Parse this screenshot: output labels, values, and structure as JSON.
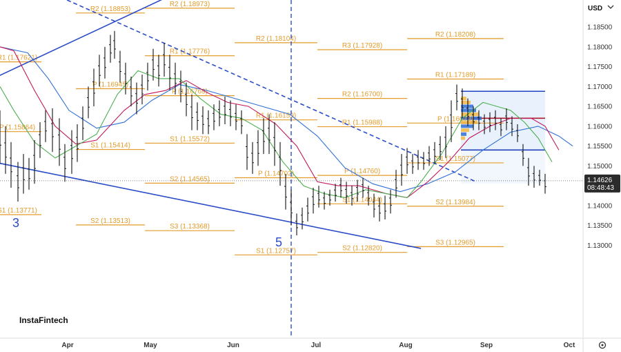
{
  "chart_data": {
    "type": "line",
    "currency_label": "USD",
    "brand": "InstaFintech",
    "y_ticks": [
      "1.18500",
      "1.18000",
      "1.17500",
      "1.17000",
      "1.16500",
      "1.16000",
      "1.15500",
      "1.15000",
      "1.14000",
      "1.13500",
      "1.13000"
    ],
    "y_tick_values": [
      1.185,
      1.18,
      1.175,
      1.17,
      1.165,
      1.16,
      1.155,
      1.15,
      1.14,
      1.135,
      1.13
    ],
    "ylim": [
      1.1258,
      1.1918
    ],
    "months": [
      "Apr",
      "May",
      "Jun",
      "Jul",
      "Aug",
      "Sep",
      "Oct"
    ],
    "last_price": "1.14626",
    "last_price_value": 1.14626,
    "countdown": "08:48:43",
    "wave_labels": [
      {
        "text": "3",
        "t": 2,
        "price": 1.1346
      },
      {
        "text": "5",
        "t": 383,
        "price": 1.1297
      }
    ],
    "pivot_levels": [
      {
        "label": "R1 (1.17621)",
        "value": 1.17621,
        "t0": -10,
        "t1": 60
      },
      {
        "label": "P (1.15864)",
        "value": 1.15864,
        "t0": -10,
        "t1": 60
      },
      {
        "label": "S1 (1.13771)",
        "value": 1.13771,
        "t0": -10,
        "t1": 60
      },
      {
        "label": "R2 (1.18853)",
        "value": 1.18853,
        "t0": 110,
        "t1": 210
      },
      {
        "label": "R1 (1.17776)",
        "value": 1.17776,
        "t0": 210,
        "t1": 340
      },
      {
        "label": "P (1.16945)",
        "value": 1.16945,
        "t0": 110,
        "t1": 210
      },
      {
        "label": "P (1.16769)",
        "value": 1.16769,
        "t0": 210,
        "t1": 340
      },
      {
        "label": "S1 (1.15414)",
        "value": 1.15414,
        "t0": 110,
        "t1": 210
      },
      {
        "label": "S1 (1.15572)",
        "value": 1.15572,
        "t0": 210,
        "t1": 340
      },
      {
        "label": "S2 (1.13513)",
        "value": 1.13513,
        "t0": 110,
        "t1": 210
      },
      {
        "label": "S2 (1.14565)",
        "value": 1.14565,
        "t0": 210,
        "t1": 340
      },
      {
        "label": "R2 (1.18973)",
        "value": 1.18973,
        "t0": 210,
        "t1": 340
      },
      {
        "label": "S3 (1.13368)",
        "value": 1.13368,
        "t0": 210,
        "t1": 340
      },
      {
        "label": "R2 (1.18104)",
        "value": 1.18104,
        "t0": 340,
        "t1": 460
      },
      {
        "label": "R1 (1.16159)",
        "value": 1.16159,
        "t0": 340,
        "t1": 460
      },
      {
        "label": "P (1.14702)",
        "value": 1.14702,
        "t0": 340,
        "t1": 460
      },
      {
        "label": "S1 (1.12757)",
        "value": 1.12757,
        "t0": 340,
        "t1": 460
      },
      {
        "label": "R3 (1.17928)",
        "value": 1.17928,
        "t0": 460,
        "t1": 590
      },
      {
        "label": "R2 (1.16700)",
        "value": 1.167,
        "t0": 460,
        "t1": 590
      },
      {
        "label": "R1 (1.15988)",
        "value": 1.15988,
        "t0": 460,
        "t1": 590
      },
      {
        "label": "P (1.14760)",
        "value": 1.1476,
        "t0": 460,
        "t1": 590
      },
      {
        "label": "S1 (1.14044)",
        "value": 1.14044,
        "t0": 460,
        "t1": 590
      },
      {
        "label": "S2 (1.12820)",
        "value": 1.1282,
        "t0": 460,
        "t1": 590
      },
      {
        "label": "R2 (1.18208)",
        "value": 1.18208,
        "t0": 590,
        "t1": 730
      },
      {
        "label": "R1 (1.17189)",
        "value": 1.17189,
        "t0": 590,
        "t1": 730
      },
      {
        "label": "P (1.16079)",
        "value": 1.16079,
        "t0": 590,
        "t1": 730
      },
      {
        "label": "S1 (1.15077)",
        "value": 1.15077,
        "t0": 590,
        "t1": 730
      },
      {
        "label": "S2 (1.13984)",
        "value": 1.13984,
        "t0": 590,
        "t1": 730
      },
      {
        "label": "S3 (1.12965)",
        "value": 1.12965,
        "t0": 590,
        "t1": 730
      }
    ],
    "trendlines": [
      {
        "points": [
          [
            -10,
            1.172
          ],
          [
            248,
            1.193
          ]
        ],
        "dashed": false
      },
      {
        "points": [
          [
            -10,
            1.151
          ],
          [
            610,
            1.1292
          ]
        ],
        "dashed": false
      },
      {
        "points": [
          [
            88,
            1.1925
          ],
          [
            690,
            1.146
          ]
        ],
        "dashed": true
      }
    ],
    "vertical_marker_t": 422,
    "series": [
      {
        "color": "#2f6fd6",
        "points": [
          [
            0,
            1.18
          ],
          [
            40,
            1.1785
          ],
          [
            70,
            1.172
          ],
          [
            100,
            1.164
          ],
          [
            140,
            1.1595
          ],
          [
            180,
            1.161
          ],
          [
            220,
            1.1665
          ],
          [
            260,
            1.1705
          ],
          [
            300,
            1.169
          ],
          [
            340,
            1.167
          ],
          [
            380,
            1.165
          ],
          [
            420,
            1.163
          ],
          [
            460,
            1.1575
          ],
          [
            500,
            1.1495
          ],
          [
            540,
            1.1455
          ],
          [
            580,
            1.1435
          ],
          [
            620,
            1.1455
          ],
          [
            660,
            1.1485
          ],
          [
            700,
            1.154
          ],
          [
            740,
            1.1585
          ],
          [
            780,
            1.16
          ],
          [
            810,
            1.1575
          ],
          [
            830,
            1.155
          ]
        ]
      },
      {
        "color": "#c2185b",
        "points": [
          [
            0,
            1.18
          ],
          [
            20,
            1.179
          ],
          [
            50,
            1.169
          ],
          [
            80,
            1.16
          ],
          [
            110,
            1.1555
          ],
          [
            140,
            1.1565
          ],
          [
            180,
            1.164
          ],
          [
            210,
            1.168
          ],
          [
            240,
            1.169
          ],
          [
            270,
            1.1715
          ],
          [
            300,
            1.1685
          ],
          [
            330,
            1.166
          ],
          [
            360,
            1.165
          ],
          [
            400,
            1.1605
          ],
          [
            430,
            1.155
          ],
          [
            460,
            1.146
          ],
          [
            490,
            1.145
          ],
          [
            520,
            1.145
          ],
          [
            560,
            1.143
          ],
          [
            590,
            1.142
          ],
          [
            620,
            1.146
          ],
          [
            650,
            1.151
          ],
          [
            680,
            1.157
          ],
          [
            710,
            1.16
          ],
          [
            740,
            1.162
          ],
          [
            770,
            1.162
          ],
          [
            790,
            1.16
          ],
          [
            810,
            1.154
          ]
        ]
      },
      {
        "color": "#4caf50",
        "points": [
          [
            0,
            1.17
          ],
          [
            20,
            1.164
          ],
          [
            50,
            1.156
          ],
          [
            80,
            1.152
          ],
          [
            110,
            1.155
          ],
          [
            140,
            1.158
          ],
          [
            170,
            1.168
          ],
          [
            200,
            1.174
          ],
          [
            230,
            1.172
          ],
          [
            260,
            1.172
          ],
          [
            290,
            1.167
          ],
          [
            320,
            1.163
          ],
          [
            350,
            1.162
          ],
          [
            380,
            1.159
          ],
          [
            410,
            1.151
          ],
          [
            440,
            1.145
          ],
          [
            470,
            1.143
          ],
          [
            500,
            1.142
          ],
          [
            530,
            1.144
          ],
          [
            560,
            1.143
          ],
          [
            590,
            1.142
          ],
          [
            610,
            1.146
          ],
          [
            640,
            1.153
          ],
          [
            670,
            1.162
          ],
          [
            700,
            1.166
          ],
          [
            720,
            1.165
          ],
          [
            740,
            1.164
          ],
          [
            760,
            1.161
          ],
          [
            780,
            1.157
          ],
          [
            800,
            1.151
          ]
        ]
      }
    ],
    "candles": [
      [
        0,
        1.164,
        1.1505
      ],
      [
        8,
        1.16,
        1.148
      ],
      [
        16,
        1.156,
        1.1445
      ],
      [
        26,
        1.151,
        1.141
      ],
      [
        34,
        1.153,
        1.143
      ],
      [
        42,
        1.152,
        1.144
      ],
      [
        50,
        1.1565,
        1.1455
      ],
      [
        58,
        1.161,
        1.152
      ],
      [
        66,
        1.164,
        1.156
      ],
      [
        76,
        1.1645,
        1.1535
      ],
      [
        86,
        1.162,
        1.15
      ],
      [
        94,
        1.1555,
        1.146
      ],
      [
        104,
        1.159,
        1.148
      ],
      [
        112,
        1.1605,
        1.151
      ],
      [
        120,
        1.165,
        1.1565
      ],
      [
        128,
        1.17,
        1.162
      ],
      [
        136,
        1.1745,
        1.165
      ],
      [
        144,
        1.178,
        1.17
      ],
      [
        152,
        1.18,
        1.172
      ],
      [
        160,
        1.183,
        1.176
      ],
      [
        166,
        1.184,
        1.177
      ],
      [
        174,
        1.179,
        1.171
      ],
      [
        182,
        1.176,
        1.168
      ],
      [
        190,
        1.1725,
        1.165
      ],
      [
        198,
        1.171,
        1.163
      ],
      [
        206,
        1.173,
        1.1655
      ],
      [
        214,
        1.176,
        1.169
      ],
      [
        222,
        1.1795,
        1.1715
      ],
      [
        230,
        1.178,
        1.17
      ],
      [
        238,
        1.181,
        1.1725
      ],
      [
        246,
        1.178,
        1.169
      ],
      [
        254,
        1.176,
        1.168
      ],
      [
        262,
        1.174,
        1.166
      ],
      [
        270,
        1.171,
        1.1625
      ],
      [
        278,
        1.168,
        1.159
      ],
      [
        286,
        1.166,
        1.159
      ],
      [
        294,
        1.165,
        1.158
      ],
      [
        302,
        1.164,
        1.158
      ],
      [
        310,
        1.1655,
        1.159
      ],
      [
        318,
        1.1665,
        1.16
      ],
      [
        326,
        1.1675,
        1.1605
      ],
      [
        334,
        1.1665,
        1.16
      ],
      [
        342,
        1.1655,
        1.159
      ],
      [
        350,
        1.164,
        1.158
      ],
      [
        358,
        1.158,
        1.149
      ],
      [
        366,
        1.156,
        1.148
      ],
      [
        374,
        1.159,
        1.15
      ],
      [
        382,
        1.162,
        1.153
      ],
      [
        390,
        1.163,
        1.153
      ],
      [
        398,
        1.161,
        1.15
      ],
      [
        406,
        1.156,
        1.145
      ],
      [
        414,
        1.148,
        1.139
      ],
      [
        422,
        1.144,
        1.135
      ],
      [
        430,
        1.138,
        1.1325
      ],
      [
        438,
        1.1395,
        1.134
      ],
      [
        446,
        1.142,
        1.136
      ],
      [
        454,
        1.1445,
        1.138
      ],
      [
        462,
        1.145,
        1.1395
      ],
      [
        470,
        1.1435,
        1.139
      ],
      [
        478,
        1.144,
        1.14
      ],
      [
        486,
        1.1455,
        1.141
      ],
      [
        494,
        1.147,
        1.142
      ],
      [
        502,
        1.146,
        1.1405
      ],
      [
        510,
        1.145,
        1.14
      ],
      [
        518,
        1.1465,
        1.141
      ],
      [
        526,
        1.147,
        1.142
      ],
      [
        534,
        1.145,
        1.14
      ],
      [
        542,
        1.143,
        1.137
      ],
      [
        550,
        1.142,
        1.136
      ],
      [
        558,
        1.1425,
        1.1365
      ],
      [
        566,
        1.144,
        1.138
      ],
      [
        574,
        1.149,
        1.142
      ],
      [
        582,
        1.153,
        1.145
      ],
      [
        590,
        1.1545,
        1.148
      ],
      [
        598,
        1.153,
        1.148
      ],
      [
        606,
        1.154,
        1.149
      ],
      [
        614,
        1.1535,
        1.149
      ],
      [
        622,
        1.155,
        1.15
      ],
      [
        630,
        1.156,
        1.1505
      ],
      [
        638,
        1.1575,
        1.1515
      ],
      [
        646,
        1.16,
        1.152
      ],
      [
        654,
        1.1665,
        1.156
      ],
      [
        662,
        1.1705,
        1.164
      ],
      [
        670,
        1.1695,
        1.162
      ],
      [
        678,
        1.167,
        1.16
      ],
      [
        686,
        1.165,
        1.159
      ],
      [
        694,
        1.164,
        1.159
      ],
      [
        702,
        1.163,
        1.158
      ],
      [
        710,
        1.1635,
        1.1585
      ],
      [
        718,
        1.164,
        1.159
      ],
      [
        726,
        1.162,
        1.1575
      ],
      [
        734,
        1.1645,
        1.159
      ],
      [
        742,
        1.1625,
        1.1575
      ],
      [
        750,
        1.1605,
        1.156
      ],
      [
        758,
        1.1555,
        1.15
      ],
      [
        766,
        1.152,
        1.145
      ],
      [
        774,
        1.15,
        1.1445
      ],
      [
        782,
        1.149,
        1.145
      ],
      [
        790,
        1.148,
        1.143
      ]
    ],
    "box": {
      "t0": 668,
      "t1": 790,
      "top": 1.1688,
      "bottom": 1.154
    },
    "x_range": [
      0,
      830
    ],
    "month_ticks_t": [
      98,
      218,
      338,
      458,
      588,
      705,
      825
    ]
  }
}
